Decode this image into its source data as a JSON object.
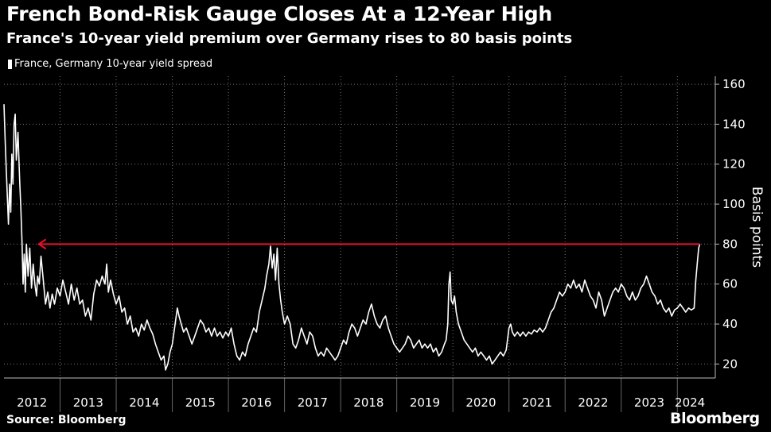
{
  "header": {
    "title": "French Bond-Risk Gauge Closes At a 12-Year High",
    "subtitle": "France's 10-year yield premium over Germany rises to 80 basis points"
  },
  "legend": {
    "label": "France, Germany 10-year yield spread"
  },
  "footer": {
    "source": "Source: Bloomberg",
    "brand": "Bloomberg"
  },
  "colors": {
    "line": "#ffffff",
    "annotation": "#e8102e",
    "grid": "#777777",
    "background": "#000000"
  },
  "chart_data": {
    "type": "line",
    "title": "French Bond-Risk Gauge Closes At a 12-Year High",
    "subtitle": "France's 10-year yield premium over Germany rises to 80 basis points",
    "xlabel": "",
    "ylabel": "Basis points",
    "x_tick_labels": [
      "2012",
      "2013",
      "2014",
      "2015",
      "2016",
      "2017",
      "2018",
      "2019",
      "2020",
      "2021",
      "2022",
      "2023",
      "2024"
    ],
    "y_ticks": [
      20,
      40,
      60,
      80,
      100,
      120,
      140,
      160
    ],
    "xlim": [
      2012.0,
      2024.45
    ],
    "ylim": [
      13,
      164
    ],
    "grid": "dotted",
    "legend_position": "top-left",
    "series": [
      {
        "name": "France, Germany 10-year yield spread",
        "points": [
          [
            2012.0,
            150
          ],
          [
            2012.02,
            133
          ],
          [
            2012.04,
            118
          ],
          [
            2012.06,
            104
          ],
          [
            2012.08,
            90
          ],
          [
            2012.1,
            110
          ],
          [
            2012.12,
            96
          ],
          [
            2012.14,
            125
          ],
          [
            2012.16,
            110
          ],
          [
            2012.18,
            140
          ],
          [
            2012.2,
            145
          ],
          [
            2012.22,
            122
          ],
          [
            2012.25,
            136
          ],
          [
            2012.28,
            112
          ],
          [
            2012.3,
            98
          ],
          [
            2012.32,
            82
          ],
          [
            2012.34,
            60
          ],
          [
            2012.36,
            75
          ],
          [
            2012.38,
            56
          ],
          [
            2012.4,
            80
          ],
          [
            2012.43,
            64
          ],
          [
            2012.46,
            78
          ],
          [
            2012.49,
            58
          ],
          [
            2012.52,
            70
          ],
          [
            2012.55,
            60
          ],
          [
            2012.58,
            54
          ],
          [
            2012.6,
            64
          ],
          [
            2012.63,
            60
          ],
          [
            2012.66,
            74
          ],
          [
            2012.7,
            62
          ],
          [
            2012.74,
            50
          ],
          [
            2012.78,
            56
          ],
          [
            2012.82,
            48
          ],
          [
            2012.86,
            55
          ],
          [
            2012.9,
            50
          ],
          [
            2012.95,
            58
          ],
          [
            2013.0,
            54
          ],
          [
            2013.05,
            62
          ],
          [
            2013.1,
            56
          ],
          [
            2013.15,
            50
          ],
          [
            2013.2,
            60
          ],
          [
            2013.25,
            52
          ],
          [
            2013.3,
            58
          ],
          [
            2013.35,
            50
          ],
          [
            2013.4,
            52
          ],
          [
            2013.45,
            44
          ],
          [
            2013.5,
            48
          ],
          [
            2013.55,
            42
          ],
          [
            2013.6,
            55
          ],
          [
            2013.65,
            62
          ],
          [
            2013.7,
            59
          ],
          [
            2013.75,
            64
          ],
          [
            2013.8,
            60
          ],
          [
            2013.83,
            70
          ],
          [
            2013.86,
            56
          ],
          [
            2013.9,
            62
          ],
          [
            2013.95,
            55
          ],
          [
            2014.0,
            50
          ],
          [
            2014.05,
            54
          ],
          [
            2014.1,
            46
          ],
          [
            2014.15,
            48
          ],
          [
            2014.2,
            40
          ],
          [
            2014.25,
            44
          ],
          [
            2014.3,
            36
          ],
          [
            2014.35,
            38
          ],
          [
            2014.4,
            34
          ],
          [
            2014.45,
            40
          ],
          [
            2014.5,
            37
          ],
          [
            2014.55,
            42
          ],
          [
            2014.6,
            38
          ],
          [
            2014.65,
            35
          ],
          [
            2014.7,
            30
          ],
          [
            2014.75,
            26
          ],
          [
            2014.8,
            22
          ],
          [
            2014.85,
            24
          ],
          [
            2014.88,
            17
          ],
          [
            2014.92,
            20
          ],
          [
            2014.96,
            26
          ],
          [
            2015.0,
            30
          ],
          [
            2015.03,
            36
          ],
          [
            2015.06,
            42
          ],
          [
            2015.09,
            48
          ],
          [
            2015.12,
            44
          ],
          [
            2015.16,
            40
          ],
          [
            2015.2,
            36
          ],
          [
            2015.25,
            38
          ],
          [
            2015.3,
            34
          ],
          [
            2015.35,
            30
          ],
          [
            2015.4,
            34
          ],
          [
            2015.45,
            38
          ],
          [
            2015.5,
            42
          ],
          [
            2015.55,
            40
          ],
          [
            2015.6,
            36
          ],
          [
            2015.65,
            38
          ],
          [
            2015.7,
            34
          ],
          [
            2015.75,
            38
          ],
          [
            2015.8,
            34
          ],
          [
            2015.85,
            36
          ],
          [
            2015.9,
            33
          ],
          [
            2015.95,
            36
          ],
          [
            2016.0,
            34
          ],
          [
            2016.05,
            38
          ],
          [
            2016.1,
            30
          ],
          [
            2016.15,
            24
          ],
          [
            2016.2,
            22
          ],
          [
            2016.25,
            26
          ],
          [
            2016.3,
            24
          ],
          [
            2016.35,
            30
          ],
          [
            2016.4,
            34
          ],
          [
            2016.45,
            38
          ],
          [
            2016.5,
            36
          ],
          [
            2016.55,
            46
          ],
          [
            2016.6,
            52
          ],
          [
            2016.65,
            58
          ],
          [
            2016.68,
            64
          ],
          [
            2016.72,
            70
          ],
          [
            2016.75,
            79
          ],
          [
            2016.78,
            68
          ],
          [
            2016.81,
            75
          ],
          [
            2016.84,
            62
          ],
          [
            2016.87,
            78
          ],
          [
            2016.9,
            60
          ],
          [
            2016.93,
            52
          ],
          [
            2016.96,
            46
          ],
          [
            2017.0,
            40
          ],
          [
            2017.05,
            44
          ],
          [
            2017.1,
            40
          ],
          [
            2017.15,
            30
          ],
          [
            2017.2,
            28
          ],
          [
            2017.25,
            32
          ],
          [
            2017.3,
            38
          ],
          [
            2017.35,
            34
          ],
          [
            2017.4,
            30
          ],
          [
            2017.45,
            36
          ],
          [
            2017.5,
            34
          ],
          [
            2017.55,
            28
          ],
          [
            2017.6,
            24
          ],
          [
            2017.65,
            26
          ],
          [
            2017.7,
            24
          ],
          [
            2017.75,
            28
          ],
          [
            2017.8,
            26
          ],
          [
            2017.85,
            24
          ],
          [
            2017.9,
            22
          ],
          [
            2017.95,
            24
          ],
          [
            2018.0,
            28
          ],
          [
            2018.05,
            32
          ],
          [
            2018.1,
            30
          ],
          [
            2018.15,
            36
          ],
          [
            2018.2,
            40
          ],
          [
            2018.25,
            38
          ],
          [
            2018.3,
            34
          ],
          [
            2018.35,
            38
          ],
          [
            2018.4,
            42
          ],
          [
            2018.45,
            40
          ],
          [
            2018.5,
            46
          ],
          [
            2018.55,
            50
          ],
          [
            2018.6,
            44
          ],
          [
            2018.65,
            40
          ],
          [
            2018.7,
            38
          ],
          [
            2018.75,
            42
          ],
          [
            2018.8,
            44
          ],
          [
            2018.85,
            38
          ],
          [
            2018.9,
            34
          ],
          [
            2018.95,
            30
          ],
          [
            2019.0,
            28
          ],
          [
            2019.05,
            26
          ],
          [
            2019.1,
            28
          ],
          [
            2019.15,
            30
          ],
          [
            2019.2,
            34
          ],
          [
            2019.25,
            32
          ],
          [
            2019.3,
            28
          ],
          [
            2019.35,
            30
          ],
          [
            2019.4,
            32
          ],
          [
            2019.45,
            28
          ],
          [
            2019.5,
            30
          ],
          [
            2019.55,
            28
          ],
          [
            2019.6,
            30
          ],
          [
            2019.65,
            26
          ],
          [
            2019.7,
            28
          ],
          [
            2019.75,
            24
          ],
          [
            2019.8,
            26
          ],
          [
            2019.85,
            30
          ],
          [
            2019.88,
            32
          ],
          [
            2019.91,
            40
          ],
          [
            2019.93,
            60
          ],
          [
            2019.95,
            66
          ],
          [
            2019.97,
            52
          ],
          [
            2020.0,
            50
          ],
          [
            2020.03,
            54
          ],
          [
            2020.06,
            46
          ],
          [
            2020.1,
            40
          ],
          [
            2020.15,
            36
          ],
          [
            2020.2,
            32
          ],
          [
            2020.25,
            30
          ],
          [
            2020.3,
            28
          ],
          [
            2020.35,
            26
          ],
          [
            2020.4,
            28
          ],
          [
            2020.45,
            24
          ],
          [
            2020.5,
            26
          ],
          [
            2020.55,
            24
          ],
          [
            2020.6,
            22
          ],
          [
            2020.65,
            24
          ],
          [
            2020.7,
            20
          ],
          [
            2020.75,
            22
          ],
          [
            2020.8,
            24
          ],
          [
            2020.85,
            26
          ],
          [
            2020.9,
            24
          ],
          [
            2020.95,
            27
          ],
          [
            2021.0,
            38
          ],
          [
            2021.03,
            40
          ],
          [
            2021.06,
            36
          ],
          [
            2021.1,
            34
          ],
          [
            2021.15,
            36
          ],
          [
            2021.2,
            34
          ],
          [
            2021.25,
            36
          ],
          [
            2021.3,
            34
          ],
          [
            2021.35,
            36
          ],
          [
            2021.4,
            35
          ],
          [
            2021.45,
            37
          ],
          [
            2021.5,
            36
          ],
          [
            2021.55,
            38
          ],
          [
            2021.6,
            36
          ],
          [
            2021.65,
            38
          ],
          [
            2021.7,
            42
          ],
          [
            2021.75,
            46
          ],
          [
            2021.8,
            48
          ],
          [
            2021.85,
            52
          ],
          [
            2021.9,
            56
          ],
          [
            2021.95,
            54
          ],
          [
            2022.0,
            56
          ],
          [
            2022.05,
            60
          ],
          [
            2022.1,
            58
          ],
          [
            2022.15,
            62
          ],
          [
            2022.2,
            58
          ],
          [
            2022.25,
            60
          ],
          [
            2022.3,
            56
          ],
          [
            2022.35,
            62
          ],
          [
            2022.4,
            58
          ],
          [
            2022.45,
            54
          ],
          [
            2022.5,
            52
          ],
          [
            2022.55,
            48
          ],
          [
            2022.6,
            56
          ],
          [
            2022.65,
            52
          ],
          [
            2022.7,
            44
          ],
          [
            2022.75,
            48
          ],
          [
            2022.8,
            52
          ],
          [
            2022.85,
            56
          ],
          [
            2022.9,
            58
          ],
          [
            2022.95,
            56
          ],
          [
            2023.0,
            60
          ],
          [
            2023.05,
            58
          ],
          [
            2023.1,
            54
          ],
          [
            2023.15,
            52
          ],
          [
            2023.2,
            56
          ],
          [
            2023.25,
            52
          ],
          [
            2023.3,
            54
          ],
          [
            2023.35,
            58
          ],
          [
            2023.4,
            60
          ],
          [
            2023.45,
            64
          ],
          [
            2023.5,
            60
          ],
          [
            2023.55,
            56
          ],
          [
            2023.6,
            54
          ],
          [
            2023.65,
            50
          ],
          [
            2023.7,
            52
          ],
          [
            2023.75,
            48
          ],
          [
            2023.8,
            46
          ],
          [
            2023.85,
            48
          ],
          [
            2023.9,
            44
          ],
          [
            2023.95,
            47
          ],
          [
            2024.0,
            48
          ],
          [
            2024.05,
            50
          ],
          [
            2024.1,
            48
          ],
          [
            2024.15,
            46
          ],
          [
            2024.2,
            48
          ],
          [
            2024.25,
            47
          ],
          [
            2024.3,
            48
          ],
          [
            2024.33,
            62
          ],
          [
            2024.36,
            72
          ],
          [
            2024.38,
            78
          ],
          [
            2024.4,
            80
          ]
        ]
      }
    ],
    "annotations": [
      {
        "type": "arrow",
        "y": 80,
        "x_from": 2024.4,
        "x_to": 2012.62,
        "color": "#e8102e"
      }
    ]
  }
}
